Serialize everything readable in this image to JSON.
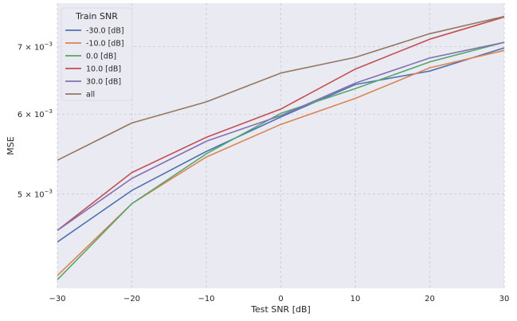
{
  "chart_data": {
    "type": "line",
    "title": "",
    "xlabel": "Test SNR [dB]",
    "ylabel": "MSE",
    "yscale": "log",
    "grid": true,
    "xlim": [
      -30,
      30
    ],
    "ylim": [
      0.00403,
      0.00773
    ],
    "x": [
      -30,
      -20,
      -10,
      0,
      10,
      20,
      30
    ],
    "x_tick_labels": [
      "−30",
      "−20",
      "−10",
      "0",
      "10",
      "20",
      "30"
    ],
    "y_ticks": [
      {
        "value": 0.005,
        "mantissa": "5",
        "base": "10",
        "exponent": "−3",
        "sep": "×"
      },
      {
        "value": 0.006,
        "mantissa": "6",
        "base": "10",
        "exponent": "−3",
        "sep": "×"
      },
      {
        "value": 0.007,
        "mantissa": "7",
        "base": "10",
        "exponent": "−3",
        "sep": "×"
      }
    ],
    "legend": {
      "title": "Train SNR",
      "position": "top-left"
    },
    "series": [
      {
        "name": "-30.0 [dB]",
        "color": "#4c72b0",
        "values": [
          0.00448,
          0.00504,
          0.00551,
          0.00596,
          0.00642,
          0.00662,
          0.00698
        ]
      },
      {
        "name": "-10.0 [dB]",
        "color": "#dd8452",
        "values": [
          0.00415,
          0.00489,
          0.00544,
          0.00586,
          0.00622,
          0.00667,
          0.00694
        ]
      },
      {
        "name": "0.0 [dB]",
        "color": "#55a868",
        "values": [
          0.00411,
          0.00489,
          0.00548,
          0.00601,
          0.00636,
          0.00676,
          0.00707
        ]
      },
      {
        "name": "10.0 [dB]",
        "color": "#c44e52",
        "values": [
          0.0046,
          0.00525,
          0.00569,
          0.00607,
          0.00665,
          0.00712,
          0.00749
        ]
      },
      {
        "name": "30.0 [dB]",
        "color": "#8172b3",
        "values": [
          0.0046,
          0.00518,
          0.00564,
          0.00598,
          0.00644,
          0.00682,
          0.00707
        ]
      },
      {
        "name": "all",
        "color": "#937860",
        "values": [
          0.0054,
          0.00588,
          0.00617,
          0.00659,
          0.00683,
          0.00721,
          0.0075
        ]
      }
    ]
  }
}
